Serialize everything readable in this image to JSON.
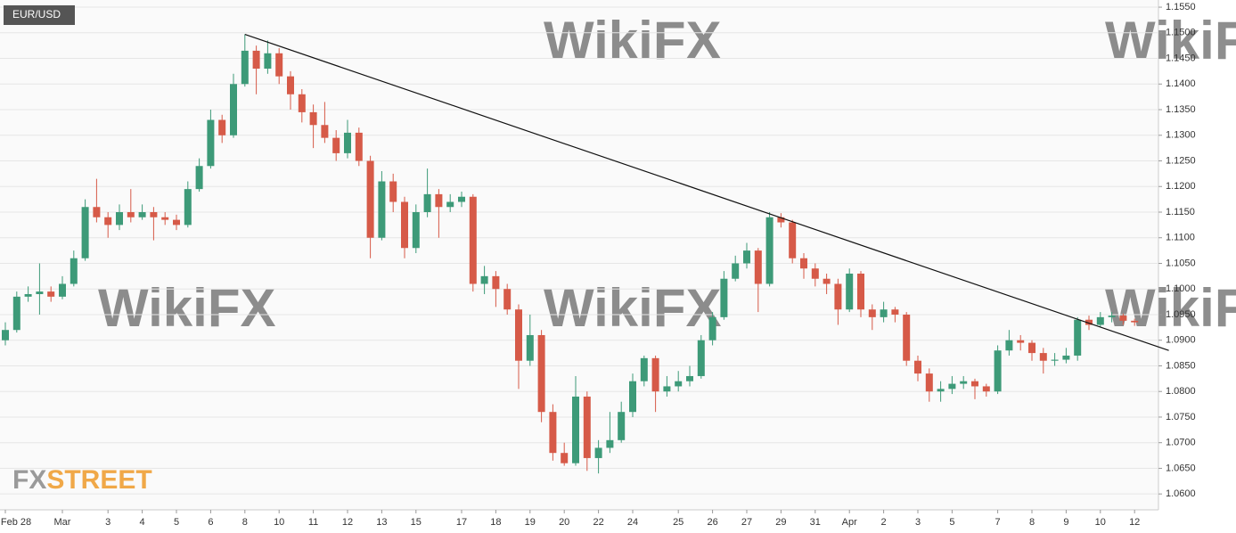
{
  "chart_data": {
    "type": "candlestick",
    "title": "EUR/USD",
    "logo": {
      "prefix": "FX",
      "suffix": "STREET"
    },
    "watermark": "WikiFX",
    "categories": [
      "Feb 28",
      null,
      null,
      null,
      null,
      "Mar",
      null,
      null,
      null,
      "3",
      null,
      null,
      "4",
      null,
      null,
      "5",
      null,
      null,
      "6",
      null,
      null,
      "8",
      null,
      null,
      "10",
      null,
      null,
      "11",
      null,
      null,
      "12",
      null,
      null,
      "13",
      null,
      null,
      "15",
      null,
      null,
      null,
      "17",
      null,
      null,
      "18",
      null,
      null,
      "19",
      null,
      null,
      "20",
      null,
      null,
      "22",
      null,
      null,
      "24",
      null,
      null,
      null,
      "25",
      null,
      null,
      "26",
      null,
      null,
      "27",
      null,
      null,
      "29",
      null,
      null,
      "31",
      null,
      null,
      "Apr",
      null,
      null,
      "2",
      null,
      null,
      "3",
      null,
      null,
      "5",
      null,
      null,
      null,
      "7",
      null,
      null,
      "8",
      null,
      null,
      "9",
      null,
      null,
      "10",
      null,
      null,
      "12"
    ],
    "open": [
      1.09,
      1.092,
      1.0985,
      1.099,
      1.0995,
      1.0985,
      1.101,
      1.106,
      1.116,
      1.114,
      1.1125,
      1.115,
      1.114,
      1.115,
      1.114,
      1.1135,
      1.1125,
      1.1195,
      1.124,
      1.133,
      1.13,
      1.14,
      1.1465,
      1.143,
      1.146,
      1.1415,
      1.138,
      1.1345,
      1.132,
      1.1295,
      1.1265,
      1.1305,
      1.125,
      1.11,
      1.121,
      1.117,
      1.108,
      1.115,
      1.1185,
      1.116,
      1.117,
      1.118,
      1.101,
      1.1025,
      1.1,
      1.096,
      1.086,
      1.091,
      1.076,
      1.068,
      1.066,
      1.079,
      1.067,
      1.069,
      1.0705,
      1.076,
      1.082,
      1.0865,
      1.08,
      1.081,
      1.082,
      1.083,
      1.09,
      1.0945,
      1.102,
      1.105,
      1.1075,
      1.101,
      1.114,
      1.113,
      1.106,
      1.104,
      1.102,
      1.101,
      1.096,
      1.103,
      1.096,
      1.0945,
      1.096,
      1.095,
      1.086,
      1.0835,
      1.08,
      1.0805,
      1.0815,
      1.082,
      1.081,
      1.08,
      1.088,
      1.09,
      1.0895,
      1.0875,
      1.086,
      1.0862,
      1.087,
      1.094,
      1.093,
      1.0945,
      1.0948,
      1.0938
    ],
    "high": [
      1.0935,
      1.0995,
      1.1005,
      1.105,
      1.1005,
      1.1025,
      1.1075,
      1.1175,
      1.1215,
      1.115,
      1.1165,
      1.1195,
      1.1165,
      1.116,
      1.115,
      1.1145,
      1.121,
      1.1255,
      1.135,
      1.134,
      1.142,
      1.1497,
      1.1475,
      1.1485,
      1.147,
      1.1425,
      1.139,
      1.136,
      1.1365,
      1.131,
      1.133,
      1.1315,
      1.126,
      1.123,
      1.1225,
      1.118,
      1.1165,
      1.1235,
      1.1195,
      1.1185,
      1.119,
      1.1185,
      1.1045,
      1.1035,
      1.101,
      1.097,
      1.095,
      1.092,
      1.0775,
      1.07,
      1.083,
      1.08,
      1.0705,
      1.076,
      1.078,
      1.0835,
      1.087,
      1.087,
      1.083,
      1.084,
      1.085,
      1.091,
      1.0955,
      1.1035,
      1.1065,
      1.109,
      1.108,
      1.115,
      1.1148,
      1.1135,
      1.107,
      1.105,
      1.103,
      1.102,
      1.104,
      1.1035,
      1.097,
      1.0975,
      1.0965,
      1.0955,
      1.087,
      1.0845,
      1.082,
      1.083,
      1.083,
      1.0825,
      1.0815,
      1.089,
      1.092,
      1.091,
      1.09,
      1.0885,
      1.0875,
      1.0885,
      1.0945,
      1.0948,
      1.0955,
      1.0955,
      1.0952,
      1.0942
    ],
    "low": [
      1.089,
      1.0915,
      1.0975,
      1.095,
      1.0975,
      1.098,
      1.1005,
      1.1055,
      1.113,
      1.11,
      1.1115,
      1.113,
      1.1135,
      1.1095,
      1.1125,
      1.1115,
      1.112,
      1.119,
      1.1235,
      1.1285,
      1.1295,
      1.1395,
      1.138,
      1.142,
      1.14,
      1.135,
      1.1325,
      1.1275,
      1.1285,
      1.125,
      1.1255,
      1.124,
      1.106,
      1.1095,
      1.115,
      1.106,
      1.107,
      1.114,
      1.11,
      1.115,
      1.116,
      1.0995,
      1.099,
      1.0965,
      1.095,
      1.0805,
      1.085,
      1.074,
      1.0665,
      1.0655,
      1.0655,
      1.0645,
      1.064,
      1.068,
      1.07,
      1.075,
      1.081,
      1.076,
      1.079,
      1.08,
      1.081,
      1.0825,
      1.089,
      1.094,
      1.1015,
      1.104,
      1.0955,
      1.1005,
      1.112,
      1.105,
      1.102,
      1.1005,
      1.099,
      1.093,
      1.0955,
      1.0945,
      1.092,
      1.0935,
      1.0935,
      1.085,
      1.082,
      1.078,
      1.078,
      1.0795,
      1.0805,
      1.0785,
      1.079,
      1.0795,
      1.087,
      1.088,
      1.086,
      1.0835,
      1.085,
      1.0855,
      1.086,
      1.092,
      1.0925,
      1.0935,
      1.093,
      1.0928
    ],
    "close": [
      1.092,
      1.0985,
      1.099,
      1.0995,
      1.0985,
      1.101,
      1.106,
      1.116,
      1.114,
      1.1125,
      1.115,
      1.114,
      1.115,
      1.114,
      1.1135,
      1.1125,
      1.1195,
      1.124,
      1.133,
      1.13,
      1.14,
      1.1465,
      1.143,
      1.146,
      1.1415,
      1.138,
      1.1345,
      1.132,
      1.1295,
      1.1265,
      1.1305,
      1.125,
      1.11,
      1.121,
      1.117,
      1.108,
      1.115,
      1.1185,
      1.116,
      1.117,
      1.118,
      1.101,
      1.1025,
      1.1,
      1.096,
      1.086,
      1.091,
      1.076,
      1.068,
      1.066,
      1.079,
      1.067,
      1.069,
      1.0705,
      1.076,
      1.082,
      1.0865,
      1.08,
      1.081,
      1.082,
      1.083,
      1.09,
      1.0945,
      1.102,
      1.105,
      1.1075,
      1.101,
      1.114,
      1.113,
      1.106,
      1.104,
      1.102,
      1.101,
      1.096,
      1.103,
      1.096,
      1.0945,
      1.096,
      1.095,
      1.086,
      1.0835,
      1.08,
      1.0805,
      1.0815,
      1.082,
      1.081,
      1.08,
      1.088,
      1.09,
      1.0895,
      1.0875,
      1.086,
      1.0862,
      1.087,
      1.094,
      1.093,
      1.0945,
      1.0948,
      1.0938,
      1.0935
    ],
    "up_color": "#3d9a78",
    "down_color": "#d65a48",
    "trendline": {
      "x": [
        21,
        102
      ],
      "y": [
        1.1497,
        1.088
      ],
      "color": "#111111"
    },
    "ylim": [
      1.0569,
      1.1564
    ],
    "yticks": [
      {
        "value": 1.155,
        "label": "1.1550"
      },
      {
        "value": 1.15,
        "label": "1.1500"
      },
      {
        "value": 1.145,
        "label": "1.1450"
      },
      {
        "value": 1.14,
        "label": "1.1400"
      },
      {
        "value": 1.135,
        "label": "1.1350"
      },
      {
        "value": 1.13,
        "label": "1.1300"
      },
      {
        "value": 1.125,
        "label": "1.1250"
      },
      {
        "value": 1.12,
        "label": "1.1200"
      },
      {
        "value": 1.115,
        "label": "1.1150"
      },
      {
        "value": 1.11,
        "label": "1.1100"
      },
      {
        "value": 1.105,
        "label": "1.1050"
      },
      {
        "value": 1.1,
        "label": "1.1000"
      },
      {
        "value": 1.095,
        "label": "1.0950"
      },
      {
        "value": 1.09,
        "label": "1.0900"
      },
      {
        "value": 1.085,
        "label": "1.0850"
      },
      {
        "value": 1.08,
        "label": "1.0800"
      },
      {
        "value": 1.075,
        "label": "1.0750"
      },
      {
        "value": 1.07,
        "label": "1.0700"
      },
      {
        "value": 1.065,
        "label": "1.0650"
      },
      {
        "value": 1.06,
        "label": "1.0600"
      }
    ],
    "grid": true
  }
}
